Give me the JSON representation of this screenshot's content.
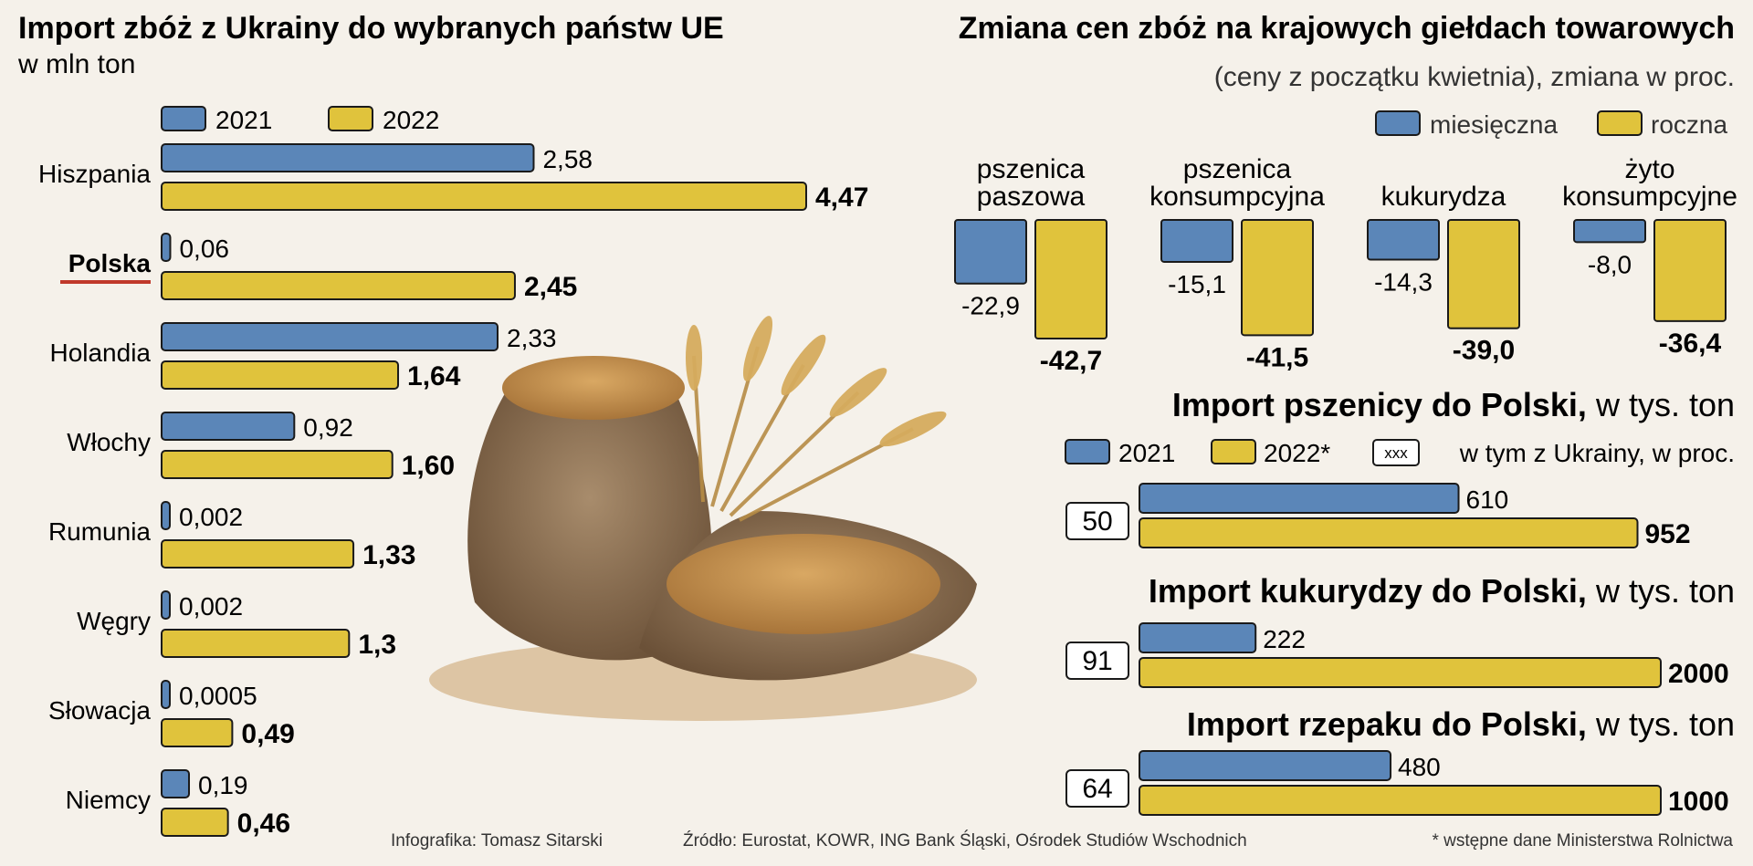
{
  "colors": {
    "blue": "#5b86b8",
    "yellow": "#e0c33c",
    "stroke": "#1a1a1a",
    "accent": "#c0392b",
    "background": "#f5f1ea"
  },
  "left": {
    "title": "Import zbóż z Ukrainy do wybranych państw UE",
    "subtitle": "w mln ton",
    "legend": [
      "2021",
      "2022"
    ]
  },
  "right": {
    "title": "Zmiana cen zbóż na krajowych giełdach towarowych",
    "subtitle": "(ceny z początku kwietnia), zmiana w proc.",
    "legend": [
      "miesięczna",
      "roczna"
    ]
  },
  "wheat_section": {
    "title_bold": "Import pszenicy do Polski,",
    "title_rest": "w tys. ton",
    "legend": [
      "2021",
      "2022*"
    ],
    "box_sample": "xxx",
    "box_legend": "w tym z Ukrainy, w proc."
  },
  "corn_section": {
    "title_bold": "Import kukurydzy do Polski,",
    "title_rest": "w tys. ton"
  },
  "rapeseed_section": {
    "title_bold": "Import rzepaku do Polski,",
    "title_rest": "w tys. ton"
  },
  "footer": {
    "author": "Infografika: Tomasz Sitarski",
    "source": "Źródło: Eurostat, KOWR,  ING Bank Śląski, Ośrodek Studiów Wschodnich",
    "note": "* wstępne dane Ministerstwa Rolnictwa"
  },
  "chart_data": [
    {
      "type": "bar",
      "orientation": "horizontal",
      "title": "Import zbóż z Ukrainy do wybranych państw UE",
      "unit": "w mln ton",
      "categories": [
        "Hiszpania",
        "Polska",
        "Holandia",
        "Włochy",
        "Rumunia",
        "Węgry",
        "Słowacja",
        "Niemcy"
      ],
      "highlight": "Polska",
      "series": [
        {
          "name": "2021",
          "values": [
            2.58,
            0.06,
            2.33,
            0.92,
            0.002,
            0.002,
            0.0005,
            0.19
          ],
          "labels": [
            "2,58",
            "0,06",
            "2,33",
            "0,92",
            "0,002",
            "0,002",
            "0,0005",
            "0,19"
          ]
        },
        {
          "name": "2022",
          "values": [
            4.47,
            2.45,
            1.64,
            1.6,
            1.33,
            1.3,
            0.49,
            0.46
          ],
          "labels": [
            "4,47",
            "2,45",
            "1,64",
            "1,60",
            "1,33",
            "1,3",
            "0,49",
            "0,46"
          ]
        }
      ]
    },
    {
      "type": "bar",
      "orientation": "vertical",
      "title": "Zmiana cen zbóż na krajowych giełdach towarowych",
      "subtitle": "(ceny z początku kwietnia), zmiana w proc.",
      "categories": [
        "pszenica paszowa",
        "pszenica konsumpcyjna",
        "kukurydza",
        "żyto konsumpcyjne"
      ],
      "category_lines": [
        [
          "pszenica",
          "paszowa"
        ],
        [
          "pszenica",
          "konsumpcyjna"
        ],
        [
          "kukurydza"
        ],
        [
          "żyto",
          "konsumpcyjne"
        ]
      ],
      "series": [
        {
          "name": "miesięczna",
          "values": [
            -22.9,
            -15.1,
            -14.3,
            -8.0
          ],
          "labels": [
            "-22,9",
            "-15,1",
            "-14,3",
            "-8,0"
          ]
        },
        {
          "name": "roczna",
          "values": [
            -42.7,
            -41.5,
            -39.0,
            -36.4
          ],
          "labels": [
            "-42,7",
            "-41,5",
            "-39,0",
            "-36,4"
          ]
        }
      ]
    },
    {
      "type": "bar",
      "orientation": "horizontal",
      "title": "Import pszenicy do Polski, w tys. ton",
      "ukraine_share_pct": "50",
      "series": [
        {
          "name": "2021",
          "values": [
            610
          ],
          "labels": [
            "610"
          ]
        },
        {
          "name": "2022*",
          "values": [
            952
          ],
          "labels": [
            "952"
          ]
        }
      ]
    },
    {
      "type": "bar",
      "orientation": "horizontal",
      "title": "Import kukurydzy do Polski, w tys. ton",
      "ukraine_share_pct": "91",
      "series": [
        {
          "name": "2021",
          "values": [
            222
          ],
          "labels": [
            "222"
          ]
        },
        {
          "name": "2022*",
          "values": [
            2000
          ],
          "labels": [
            "2000"
          ]
        }
      ]
    },
    {
      "type": "bar",
      "orientation": "horizontal",
      "title": "Import rzepaku do Polski, w tys. ton",
      "ukraine_share_pct": "64",
      "series": [
        {
          "name": "2021",
          "values": [
            480
          ],
          "labels": [
            "480"
          ]
        },
        {
          "name": "2022*",
          "values": [
            1000
          ],
          "labels": [
            "1000"
          ]
        }
      ]
    }
  ]
}
